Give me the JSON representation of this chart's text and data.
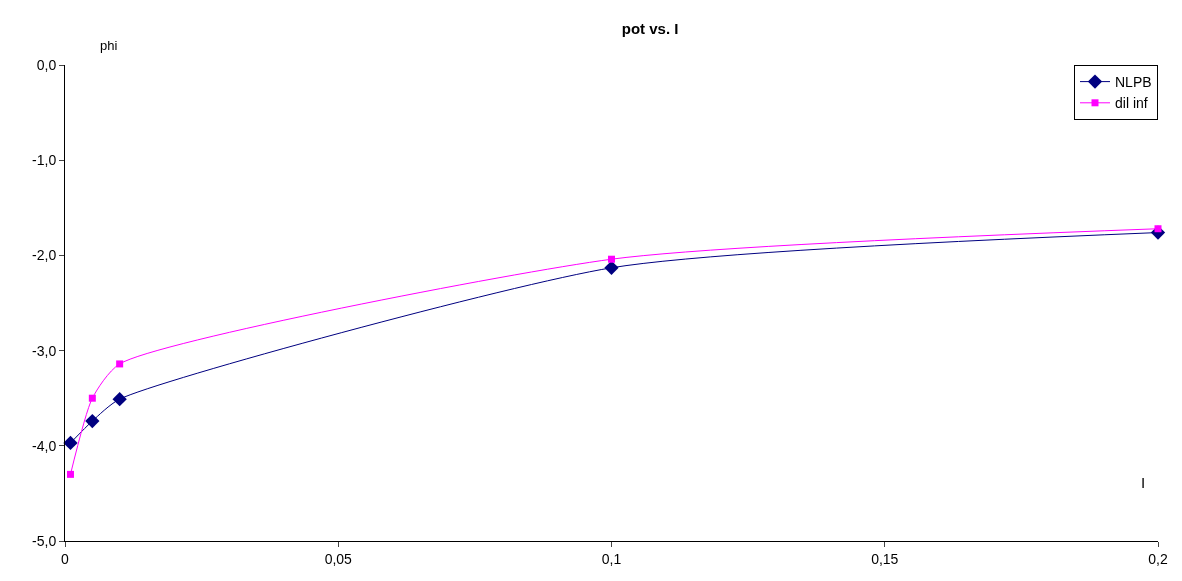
{
  "chart_data": {
    "type": "line",
    "title": "pot vs. I",
    "xlabel": "I",
    "ylabel": "phi",
    "x": [
      0.001,
      0.005,
      0.01,
      0.1,
      0.2
    ],
    "series": [
      {
        "name": "NLPB",
        "color": "#000080",
        "marker": "diamond",
        "values": [
          -3.97,
          -3.74,
          -3.51,
          -2.13,
          -1.76
        ]
      },
      {
        "name": "dil inf",
        "color": "#ff00ff",
        "marker": "square",
        "values": [
          -4.3,
          -3.5,
          -3.14,
          -2.04,
          -1.72
        ]
      }
    ],
    "xlim": [
      0,
      0.2
    ],
    "xticks": [
      0,
      {
        "value": 0.05,
        "label": "0,05"
      },
      {
        "value": 0.1,
        "label": "0,1"
      },
      {
        "value": 0.15,
        "label": "0,15"
      },
      {
        "value": 0.2,
        "label": "0,2"
      }
    ],
    "ylim": [
      -5,
      0
    ],
    "yticks": [
      {
        "value": -5,
        "label": "-5,0"
      },
      {
        "value": -4,
        "label": "-4,0"
      },
      {
        "value": -3,
        "label": "-3,0"
      },
      {
        "value": -2,
        "label": "-2,0"
      },
      {
        "value": -1,
        "label": "-1,0"
      },
      {
        "value": 0,
        "label": "0,0"
      }
    ],
    "legend": "top right",
    "line_style": "solid"
  }
}
